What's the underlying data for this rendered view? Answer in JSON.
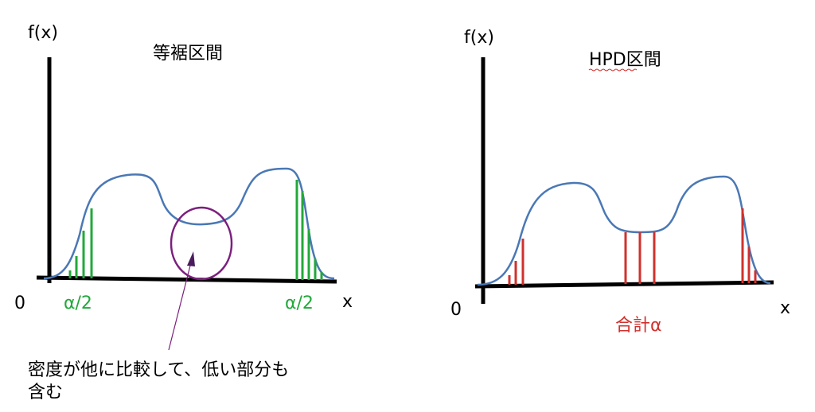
{
  "left_panel": {
    "y_axis_label": "f(x)",
    "title": "等裾区間",
    "origin_label": "0",
    "x_axis_label": "x",
    "tail_labels": [
      "α/2",
      "α/2"
    ],
    "annotation_lines": [
      "密度が他に比較して、低い部分も",
      "含む"
    ]
  },
  "right_panel": {
    "y_axis_label": "f(x)",
    "title": "HPD区間",
    "origin_label": "0",
    "x_axis_label": "x",
    "total_label": "合計α"
  }
}
